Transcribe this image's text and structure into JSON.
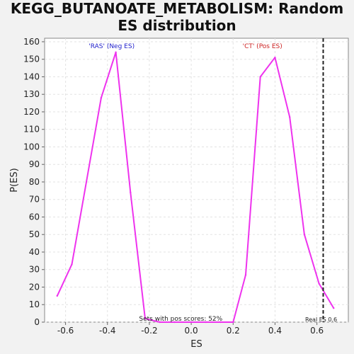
{
  "chart_data": {
    "type": "line",
    "title_lines": [
      "KEGG_BUTANOATE_METABOLISM: Random",
      "ES distribution"
    ],
    "xlabel": "ES",
    "ylabel": "P(ES)",
    "xlim": [
      -0.7,
      0.75
    ],
    "ylim": [
      0,
      162
    ],
    "x_ticks": [
      "-0.6",
      "-0.4",
      "-0.2",
      "0.0",
      "0.2",
      "0.4",
      "0.6"
    ],
    "y_ticks": [
      "0",
      "10",
      "20",
      "30",
      "40",
      "50",
      "60",
      "70",
      "80",
      "90",
      "100",
      "110",
      "120",
      "130",
      "140",
      "150",
      "160"
    ],
    "grid": true,
    "series": [
      {
        "color": "#ee33ee",
        "x": [
          -0.64,
          -0.57,
          -0.43,
          -0.36,
          -0.29,
          -0.22,
          -0.15,
          -0.08,
          0.0,
          0.07,
          0.14,
          0.2,
          0.26,
          0.33,
          0.4,
          0.47,
          0.54,
          0.61,
          0.68
        ],
        "y": [
          15,
          33,
          128,
          154,
          74,
          2,
          0,
          0,
          0,
          0,
          0,
          0,
          27,
          140,
          151,
          117,
          50,
          22,
          8
        ]
      }
    ],
    "annotations": {
      "neg_label": "'RAS' (Neg ES)",
      "pos_label": "'CT' (Pos ES)",
      "sets_text": "Sets with pos scores: 52%",
      "real_es_text": "Real ES 0.6",
      "real_es_value": 0.63,
      "neg_color": "#2222cc",
      "pos_color": "#cc2222"
    }
  }
}
